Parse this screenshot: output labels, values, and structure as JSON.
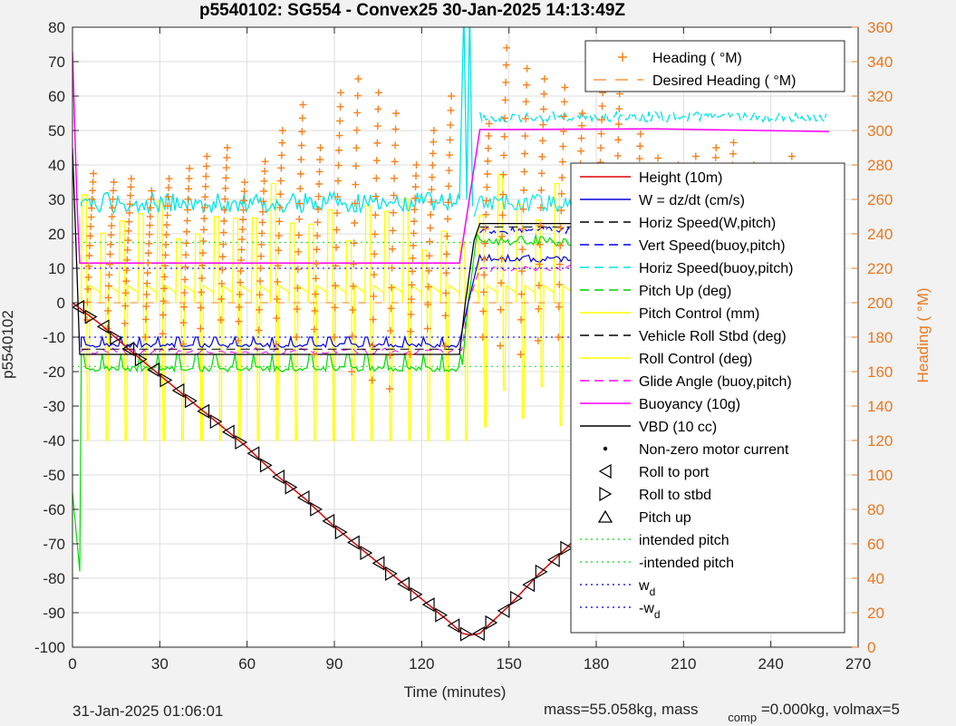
{
  "chart_data": {
    "type": "line",
    "title": "p5540102: SG554 - Convex25 30-Jan-2025 14:13:49Z",
    "xlabel": "Time (minutes)",
    "ylabel_left": "p5540102",
    "ylabel_right": "Heading (  °M)",
    "xlim": [
      0,
      270
    ],
    "ylim_left": [
      -100,
      80
    ],
    "ylim_right": [
      0,
      360
    ],
    "x_ticks": [
      "0",
      "30",
      "60",
      "90",
      "120",
      "150",
      "180",
      "210",
      "240",
      "270"
    ],
    "y_ticks_left": [
      "80",
      "70",
      "60",
      "50",
      "40",
      "30",
      "20",
      "10",
      "0",
      "-10",
      "-20",
      "-30",
      "-40",
      "-50",
      "-60",
      "-70",
      "-80",
      "-90",
      "-100"
    ],
    "y_ticks_right": [
      "360",
      "340",
      "320",
      "300",
      "280",
      "260",
      "240",
      "220",
      "200",
      "180",
      "160",
      "140",
      "120",
      "100",
      "80",
      "60",
      "40",
      "20",
      "0"
    ],
    "grid": true,
    "footer_left": "31-Jan-2025 01:06:01",
    "footer_right_a": "mass=55.058kg, mass",
    "footer_right_sub": "comp",
    "footer_right_b": "=0.000kg, volmax=5",
    "colors": {
      "height": "#e00000",
      "w": "#0000dd",
      "hspd_w": "#000000",
      "vspd_buoy": "#0000ff",
      "hspd_buoy": "#00e5e5",
      "pitch_up": "#00cc00",
      "pitch_ctrl": "#ffff00",
      "roll": "#000000",
      "roll_ctrl": "#ffff00",
      "glide": "#ff00ff",
      "buoy": "#ff00ff",
      "vbd": "#000000",
      "heading": "#f7821e"
    },
    "legend_right": [
      {
        "label": "Heading (  °M)",
        "style": "plus"
      },
      {
        "label": "Desired Heading (    °M)",
        "style": "dash"
      }
    ],
    "legend_left": [
      {
        "label": "Height (10m)",
        "style": "solid-red"
      },
      {
        "label": "W = dz/dt (cm/s)",
        "style": "solid-blue"
      },
      {
        "label": "Horiz Speed(W,pitch)",
        "style": "dash-black"
      },
      {
        "label": "Vert Speed(buoy,pitch)",
        "style": "dash-blue"
      },
      {
        "label": "Horiz Speed(buoy,pitch)",
        "style": "dash-cyan"
      },
      {
        "label": "Pitch Up (deg)",
        "style": "dash-green"
      },
      {
        "label": "Pitch Control (mm)",
        "style": "solid-yellow"
      },
      {
        "label": "Vehicle Roll Stbd (deg)",
        "style": "dash-black"
      },
      {
        "label": "Roll Control (deg)",
        "style": "solid-yellow"
      },
      {
        "label": "Glide Angle (buoy,pitch)",
        "style": "dash-magenta"
      },
      {
        "label": "Buoyancy (10g)",
        "style": "solid-magenta"
      },
      {
        "label": "VBD (10 cc)",
        "style": "solid-black"
      },
      {
        "label": "Non-zero motor current",
        "style": "dot"
      },
      {
        "label": "Roll to port",
        "style": "tri-left"
      },
      {
        "label": "Roll to stbd",
        "style": "tri-right"
      },
      {
        "label": "Pitch up",
        "style": "tri-up"
      },
      {
        "label": "intended pitch",
        "style": "dot-green"
      },
      {
        "label": "-intended pitch",
        "style": "dot-green"
      },
      {
        "label": "w",
        "sub": "d",
        "style": "dot-blue"
      },
      {
        "label": "-w",
        "sub": "d",
        "style": "dot-blue"
      }
    ],
    "series": [
      {
        "key": "height",
        "x": [
          0,
          10,
          20,
          30,
          40,
          50,
          60,
          70,
          80,
          90,
          100,
          110,
          120,
          130,
          134,
          137,
          140,
          150,
          160,
          170,
          180,
          190,
          200,
          210,
          220,
          230,
          240,
          250,
          260
        ],
        "y": [
          0,
          -6.5,
          -14,
          -21,
          -28,
          -35,
          -42,
          -50,
          -57,
          -65,
          -72,
          -79,
          -86,
          -93,
          -96,
          -96.5,
          -96,
          -88,
          -79,
          -71,
          -62,
          -54,
          -45,
          -37,
          -29,
          -20,
          -12,
          -4,
          0
        ]
      },
      {
        "key": "buoy",
        "x": [
          0,
          1.5,
          2.5,
          20,
          60,
          100,
          133,
          140,
          150,
          200,
          260
        ],
        "y": [
          73,
          30,
          11.5,
          11.5,
          11.5,
          11.5,
          11.5,
          50.3,
          50.3,
          50.5,
          49.7
        ]
      },
      {
        "key": "vbd",
        "x": [
          0,
          1.5,
          2.5,
          60,
          120,
          133,
          135,
          138,
          140,
          200,
          260
        ],
        "y": [
          45,
          10,
          -15,
          -15,
          -15,
          -15,
          0,
          18,
          23,
          23,
          23
        ]
      },
      {
        "key": "hspd_buoy_level",
        "x": [
          3,
          130,
          136,
          140,
          260
        ],
        "y": [
          30,
          30,
          30,
          54,
          54
        ]
      },
      {
        "key": "w_level",
        "x": [
          3,
          130,
          136,
          140,
          260
        ],
        "y": [
          -12,
          -12,
          0,
          14,
          12
        ]
      },
      {
        "key": "pitch_level",
        "x": [
          3,
          130,
          136,
          140,
          260
        ],
        "y": [
          -18,
          -18,
          0,
          18,
          18
        ]
      },
      {
        "key": "hspd_buoy_ascent",
        "x": [
          140,
          260
        ],
        "y": [
          28,
          30
        ]
      },
      {
        "key": "pitch_ctrl_level",
        "x": [
          3,
          260
        ],
        "y": [
          -40,
          38
        ]
      }
    ],
    "reference_lines": [
      {
        "label": "intended pitch",
        "y": 17.5
      },
      {
        "label": "-intended pitch",
        "y": -18.5
      },
      {
        "label": "w_d",
        "y": 10
      },
      {
        "label": "-w_d",
        "y": -10
      }
    ],
    "heading_cycles": {
      "x_start": [
        5,
        12,
        18,
        25,
        31,
        38,
        44,
        51,
        57,
        64,
        70,
        77,
        83,
        90,
        96,
        103,
        109,
        116,
        122,
        128,
        141,
        147,
        154,
        160,
        167,
        173,
        180,
        186,
        193,
        199,
        206,
        212,
        219,
        225,
        232,
        238,
        245,
        251,
        257
      ],
      "low": [
        190,
        185,
        188,
        180,
        182,
        176,
        185,
        190,
        178,
        184,
        176,
        180,
        170,
        180,
        160,
        155,
        150,
        170,
        185,
        175,
        180,
        175,
        170,
        178,
        180,
        185,
        186,
        180,
        175,
        190,
        185,
        186,
        190,
        180,
        188,
        185,
        175,
        188,
        145
      ],
      "high": [
        275,
        270,
        272,
        265,
        272,
        278,
        285,
        290,
        270,
        282,
        300,
        315,
        290,
        322,
        330,
        322,
        310,
        280,
        300,
        320,
        304,
        348,
        336,
        330,
        325,
        310,
        322,
        330,
        298,
        284,
        280,
        285,
        290,
        293,
        280,
        275,
        285,
        272,
        275
      ]
    }
  }
}
